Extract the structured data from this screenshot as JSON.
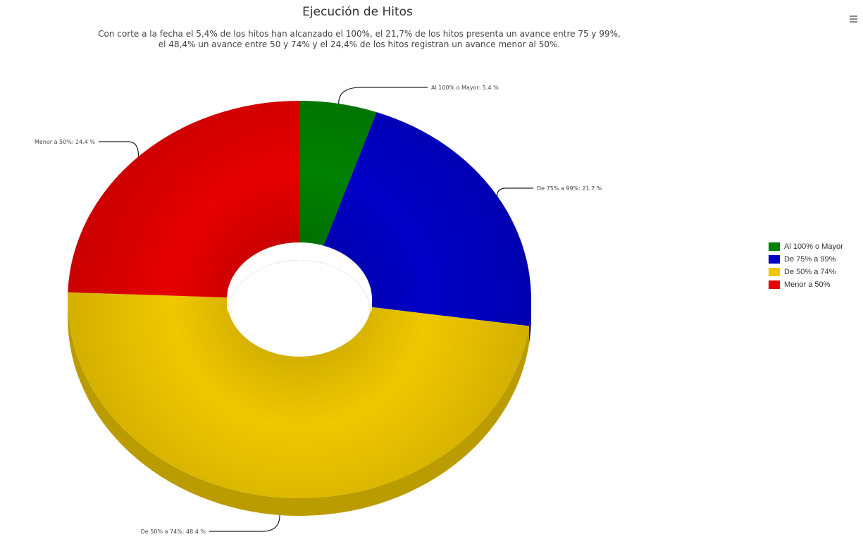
{
  "chart_data": {
    "type": "pie",
    "title": "Ejecución de Hitos",
    "subtitle_lines": [
      "Con corte a la fecha el 5,4% de los hitos han alcanzado el 100%, el 21,7% de los hitos presenta un avance entre 75 y 99%,",
      "el 48,4% un avance entre 50 y 74% y el 24,4% de los hitos registran un avance menor al 50%."
    ],
    "slices": [
      {
        "name": "Al 100% o Mayor",
        "value": 5.4,
        "color": "#008000",
        "label": "Al 100% o Mayor: 5.4 %"
      },
      {
        "name": "De 75% a 99%",
        "value": 21.7,
        "color": "#0000c8",
        "label": "De 75% a 99%: 21.7 %"
      },
      {
        "name": "De 50% a 74%",
        "value": 48.4,
        "color": "#f0c800",
        "label": "De 50% a 74%: 48.4 %"
      },
      {
        "name": "Menor a 50%",
        "value": 24.4,
        "color": "#e60000",
        "label": "Menor a 50%: 24.4 %"
      }
    ],
    "style": "3d-donut",
    "legend_position": "right"
  },
  "menu": {
    "icon": "hamburger-menu-icon"
  }
}
